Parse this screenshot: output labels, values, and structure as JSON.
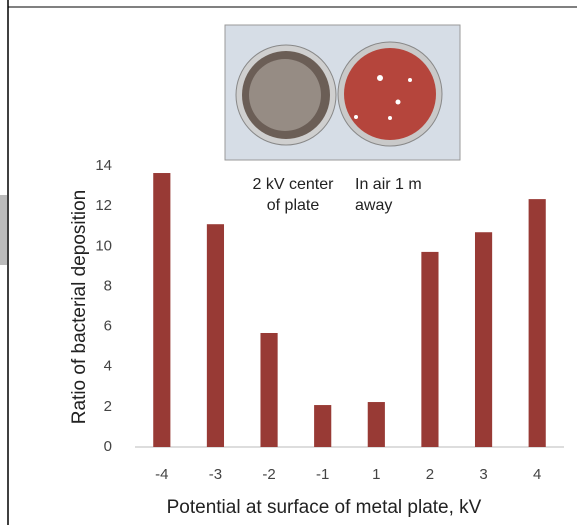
{
  "chart_data": {
    "type": "bar",
    "x_label": "Potential at surface of metal plate, kV",
    "y_label": "Ratio of bacterial deposition",
    "categories": [
      "-4",
      "-3",
      "-2",
      "-1",
      "1",
      "2",
      "3",
      "4"
    ],
    "values": [
      13.65,
      11.1,
      5.68,
      2.09,
      2.24,
      9.72,
      10.7,
      12.35
    ],
    "color": "#983a35",
    "ylim": [
      0,
      14
    ],
    "yticks": [
      0,
      2,
      4,
      6,
      8,
      10,
      12,
      14
    ],
    "grid": false,
    "annotations": [
      {
        "lines": [
          "2 kV center",
          "of plate"
        ]
      },
      {
        "lines": [
          "In air 1 m",
          "away"
        ]
      }
    ]
  }
}
